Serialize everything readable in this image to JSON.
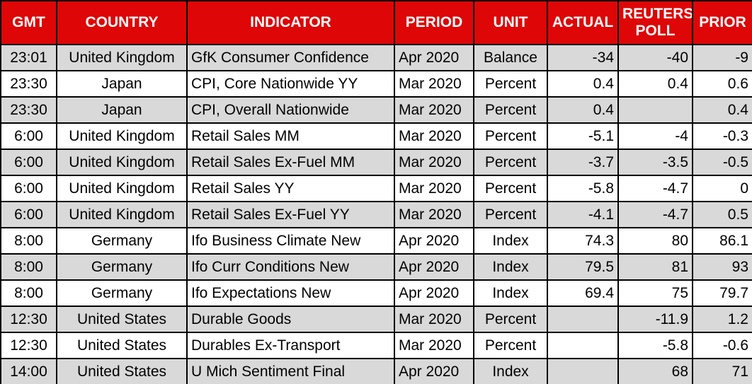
{
  "colors": {
    "header_bg": "#de0606",
    "header_text": "#ffffff",
    "row_stripe_bg": "#d9d9d9",
    "row_bg": "#ffffff",
    "grid_border": "#000000",
    "cell_text": "#000000"
  },
  "chart_data": {
    "type": "table",
    "columns": [
      "GMT",
      "COUNTRY",
      "INDICATOR",
      "PERIOD",
      "UNIT",
      "ACTUAL",
      "REUTERS POLL",
      "PRIOR"
    ],
    "rows": [
      [
        "23:01",
        "United Kingdom",
        "GfK Consumer Confidence",
        "Apr 2020",
        "Balance",
        "-34",
        "-40",
        "-9"
      ],
      [
        "23:30",
        "Japan",
        "CPI, Core Nationwide YY",
        "Mar 2020",
        "Percent",
        "0.4",
        "0.4",
        "0.6"
      ],
      [
        "23:30",
        "Japan",
        "CPI, Overall Nationwide",
        "Mar 2020",
        "Percent",
        "0.4",
        "",
        "0.4"
      ],
      [
        "6:00",
        "United Kingdom",
        "Retail Sales MM",
        "Mar 2020",
        "Percent",
        "-5.1",
        "-4",
        "-0.3"
      ],
      [
        "6:00",
        "United Kingdom",
        "Retail Sales Ex-Fuel MM",
        "Mar 2020",
        "Percent",
        "-3.7",
        "-3.5",
        "-0.5"
      ],
      [
        "6:00",
        "United Kingdom",
        "Retail Sales YY",
        "Mar 2020",
        "Percent",
        "-5.8",
        "-4.7",
        "0"
      ],
      [
        "6:00",
        "United Kingdom",
        "Retail Sales Ex-Fuel YY",
        "Mar 2020",
        "Percent",
        "-4.1",
        "-4.7",
        "0.5"
      ],
      [
        "8:00",
        "Germany",
        "Ifo Business Climate New",
        "Apr 2020",
        "Index",
        "74.3",
        "80",
        "86.1"
      ],
      [
        "8:00",
        "Germany",
        "Ifo Curr Conditions New",
        "Apr 2020",
        "Index",
        "79.5",
        "81",
        "93"
      ],
      [
        "8:00",
        "Germany",
        "Ifo Expectations New",
        "Apr 2020",
        "Index",
        "69.4",
        "75",
        "79.7"
      ],
      [
        "12:30",
        "United States",
        "Durable Goods",
        "Mar 2020",
        "Percent",
        "",
        "-11.9",
        "1.2"
      ],
      [
        "12:30",
        "United States",
        "Durables Ex-Transport",
        "Mar 2020",
        "Percent",
        "",
        "-5.8",
        "-0.6"
      ],
      [
        "14:00",
        "United States",
        "U Mich Sentiment Final",
        "Apr 2020",
        "Index",
        "",
        "68",
        "71"
      ]
    ],
    "column_alignments": [
      "center",
      "center",
      "left",
      "left",
      "center",
      "right",
      "right",
      "right"
    ],
    "layout": {
      "header_rows": 1,
      "striped": true,
      "first_data_row_shaded": true,
      "grid": true
    }
  }
}
